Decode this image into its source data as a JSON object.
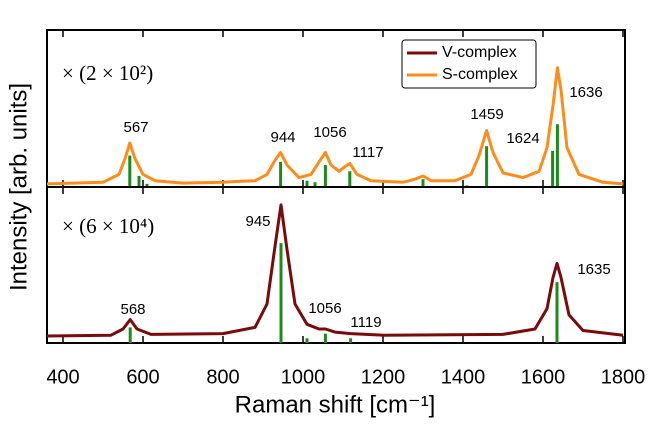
{
  "chart_data": {
    "type": "line",
    "xlabel": "Raman shift [cm⁻¹]",
    "ylabel": "Intensity [arb. units]",
    "xlim": [
      360,
      1805
    ],
    "xticks": [
      400,
      600,
      800,
      1000,
      1200,
      1400,
      1600,
      1800
    ],
    "legend": "upper right",
    "panels": [
      {
        "multiplier": "× (2 × 10²)",
        "ylim": [
          0,
          1
        ],
        "series": [
          {
            "name": "S-complex",
            "color": "#ff8c1a",
            "x": [
              360,
              500,
              540,
              555,
              567,
              580,
              600,
              630,
              700,
              800,
              830,
              880,
              910,
              930,
              944,
              960,
              990,
              1020,
              1040,
              1056,
              1070,
              1090,
              1105,
              1117,
              1135,
              1170,
              1250,
              1280,
              1300,
              1320,
              1380,
              1420,
              1440,
              1459,
              1475,
              1500,
              1550,
              1590,
              1610,
              1625,
              1636,
              1645,
              1660,
              1690,
              1750,
              1800
            ],
            "values": [
              0.02,
              0.03,
              0.08,
              0.18,
              0.28,
              0.18,
              0.08,
              0.04,
              0.025,
              0.03,
              0.035,
              0.04,
              0.08,
              0.17,
              0.22,
              0.14,
              0.06,
              0.08,
              0.16,
              0.22,
              0.14,
              0.1,
              0.13,
              0.15,
              0.08,
              0.04,
              0.03,
              0.05,
              0.07,
              0.04,
              0.04,
              0.08,
              0.2,
              0.36,
              0.22,
              0.09,
              0.06,
              0.1,
              0.25,
              0.52,
              0.76,
              0.62,
              0.25,
              0.08,
              0.03,
              0.02
            ]
          }
        ],
        "sticks": {
          "color": "#1a8c1a",
          "x": [
            567,
            590,
            610,
            944,
            1010,
            1030,
            1056,
            1117,
            1300,
            1410,
            1459,
            1624,
            1636
          ],
          "values": [
            0.2,
            0.07,
            0.02,
            0.16,
            0.04,
            0.03,
            0.14,
            0.1,
            0.05,
            0.01,
            0.26,
            0.23,
            0.4
          ]
        },
        "annotations": [
          "567",
          "944",
          "1056",
          "1117",
          "1459",
          "1624",
          "1636"
        ]
      },
      {
        "multiplier": "× (6 × 10⁴)",
        "ylim": [
          0,
          1
        ],
        "series": [
          {
            "name": "V-complex",
            "color": "#7b0a0a",
            "x": [
              360,
              520,
              550,
              568,
              585,
              620,
              800,
              880,
              910,
              930,
              945,
              960,
              980,
              1010,
              1040,
              1056,
              1080,
              1119,
              1200,
              1500,
              1580,
              1610,
              1625,
              1635,
              1645,
              1665,
              1700,
              1800
            ],
            "values": [
              0.045,
              0.05,
              0.09,
              0.15,
              0.09,
              0.055,
              0.06,
              0.1,
              0.25,
              0.62,
              0.885,
              0.6,
              0.25,
              0.12,
              0.09,
              0.09,
              0.07,
              0.06,
              0.05,
              0.055,
              0.09,
              0.22,
              0.42,
              0.51,
              0.42,
              0.18,
              0.08,
              0.05
            ]
          }
        ],
        "sticks": {
          "color": "#1a8c1a",
          "x": [
            568,
            945,
            1010,
            1056,
            1119,
            1635
          ],
          "values": [
            0.1,
            0.64,
            0.03,
            0.06,
            0.03,
            0.39
          ]
        },
        "annotations": [
          "945",
          "1635",
          "568",
          "1056",
          "1119"
        ]
      }
    ]
  }
}
